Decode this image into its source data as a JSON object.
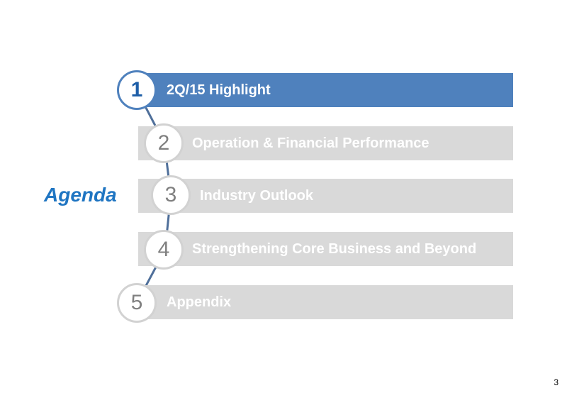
{
  "agenda": {
    "title": "Agenda",
    "items": [
      {
        "number": "1",
        "label": "2Q/15 Highlight",
        "active": true
      },
      {
        "number": "2",
        "label": "Operation & Financial Performance",
        "active": false
      },
      {
        "number": "3",
        "label": "Industry Outlook",
        "active": false
      },
      {
        "number": "4",
        "label": "Strengthening Core Business and Beyond",
        "active": false
      },
      {
        "number": "5",
        "label": "Appendix",
        "active": false
      }
    ]
  },
  "page_number": "3",
  "colors": {
    "active_bar": "#4f81bd",
    "inactive_bar": "#d9d9d9",
    "title": "#1f75c2",
    "connector": "#4f6f9a"
  }
}
